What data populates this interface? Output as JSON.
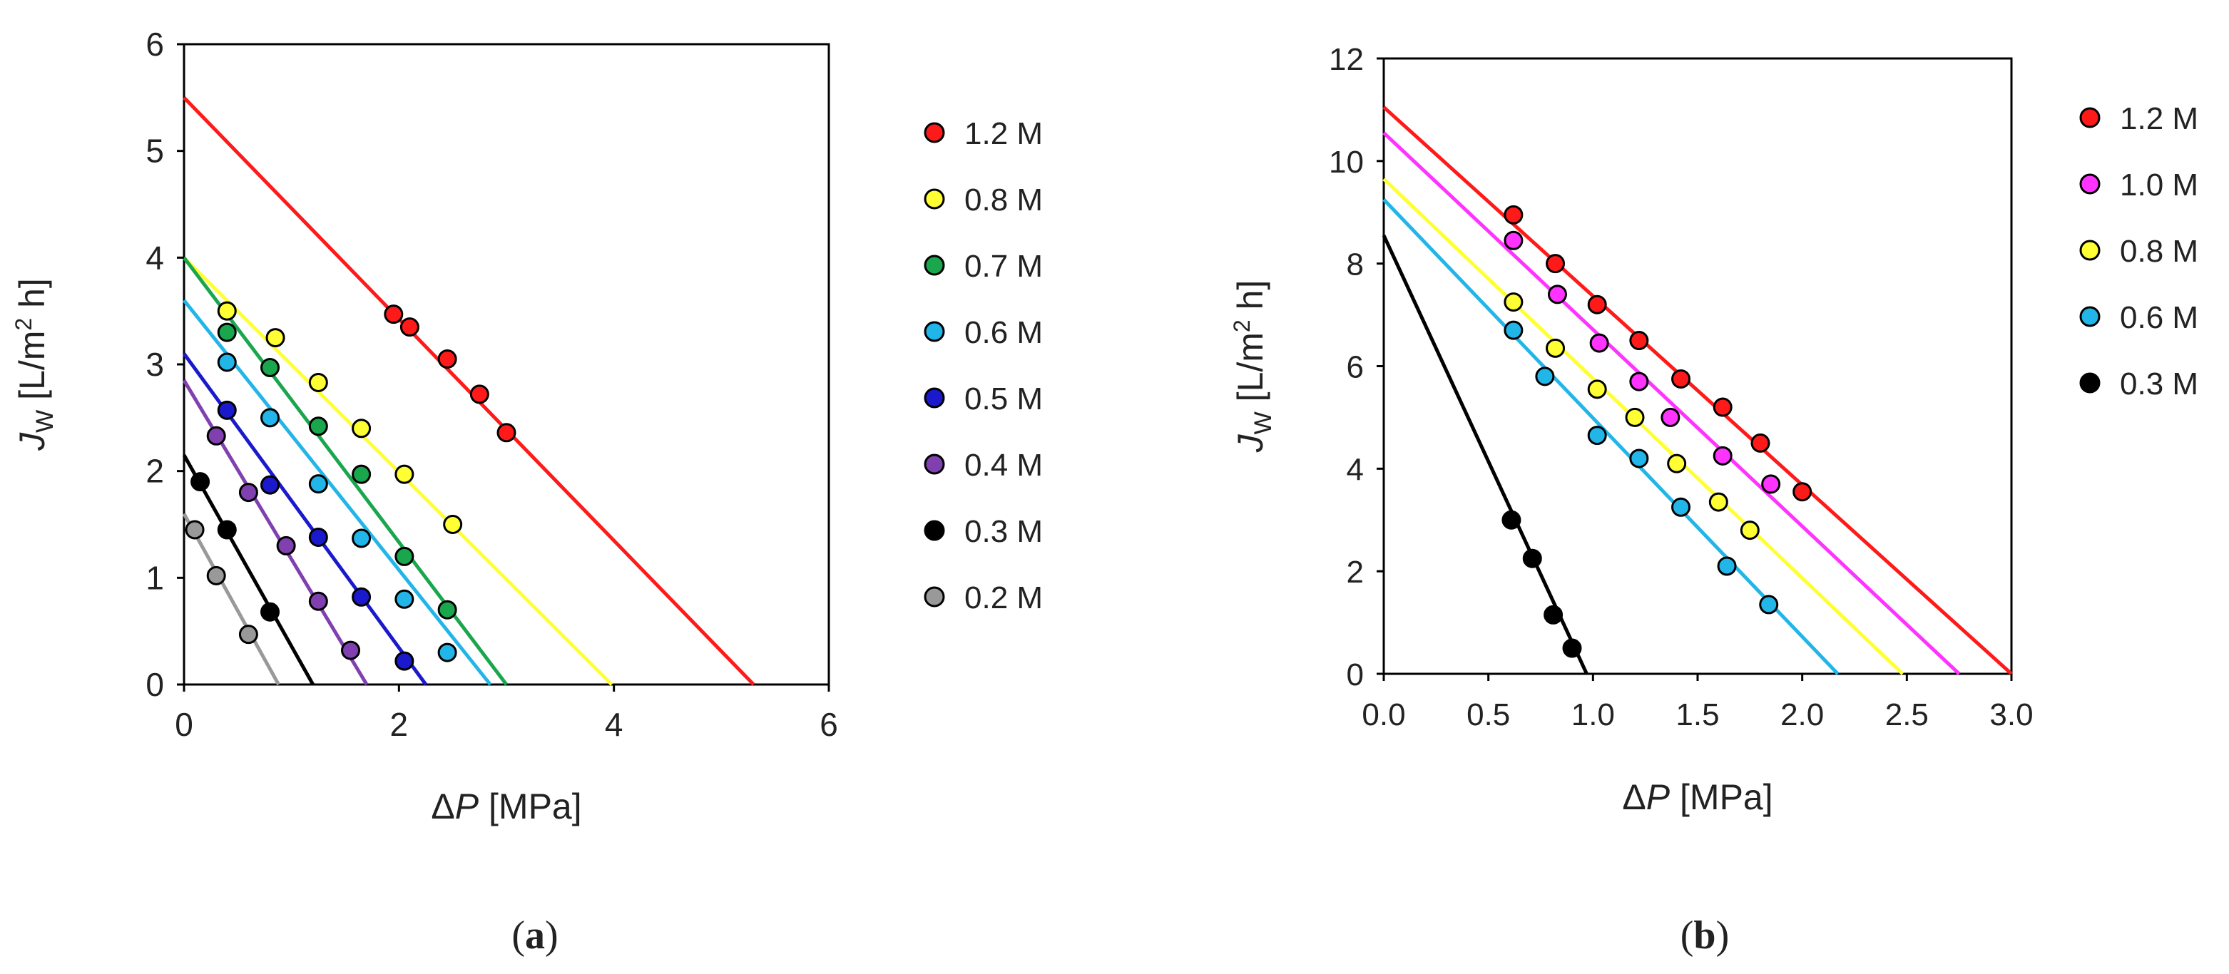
{
  "figure": {
    "panel_a_label": "a",
    "panel_b_label": "b"
  },
  "chart_data": [
    {
      "type": "scatter",
      "panel": "a",
      "title": "",
      "xlabel_prefix": "Δ",
      "xlabel_var": "P",
      "xlabel_unit": "[MPa]",
      "ylabel_var": "J",
      "ylabel_sub": "W",
      "ylabel_unit_pre": "[L/m",
      "ylabel_unit_sup": "2",
      "ylabel_unit_post": " h]",
      "xlim": [
        0,
        6
      ],
      "ylim": [
        0,
        6
      ],
      "xticks": [
        0,
        2,
        4,
        6
      ],
      "xtick_labels": [
        "0",
        "2",
        "4",
        "6"
      ],
      "yticks": [
        0,
        1,
        2,
        3,
        4,
        5,
        6
      ],
      "ytick_labels": [
        "0",
        "1",
        "2",
        "3",
        "4",
        "5",
        "6"
      ],
      "grid": false,
      "legend_position": "right",
      "series": [
        {
          "name": "1.2 M",
          "color": "#ff1a1a",
          "line": {
            "x": [
              0,
              5.3
            ],
            "y": [
              5.5,
              0
            ]
          },
          "points": {
            "x": [
              1.95,
              2.1,
              2.45,
              2.75,
              3.0
            ],
            "y": [
              3.47,
              3.35,
              3.05,
              2.72,
              2.36
            ]
          }
        },
        {
          "name": "0.8 M",
          "color": "#ffff33",
          "line": {
            "x": [
              0,
              3.98
            ],
            "y": [
              4.0,
              0
            ]
          },
          "points": {
            "x": [
              0.4,
              0.85,
              1.25,
              1.65,
              2.05,
              2.5
            ],
            "y": [
              3.5,
              3.25,
              2.83,
              2.4,
              1.97,
              1.5
            ]
          }
        },
        {
          "name": "0.7 M",
          "color": "#1aa64d",
          "line": {
            "x": [
              0,
              3.0
            ],
            "y": [
              4.0,
              0
            ]
          },
          "points": {
            "x": [
              0.4,
              0.8,
              1.25,
              1.65,
              2.05,
              2.45
            ],
            "y": [
              3.3,
              2.97,
              2.42,
              1.97,
              1.2,
              0.7
            ]
          }
        },
        {
          "name": "0.6 M",
          "color": "#22b5e8",
          "line": {
            "x": [
              0,
              2.85
            ],
            "y": [
              3.6,
              0
            ]
          },
          "points": {
            "x": [
              0.4,
              0.8,
              1.25,
              1.65,
              2.05,
              2.45
            ],
            "y": [
              3.02,
              2.5,
              1.88,
              1.37,
              0.8,
              0.3
            ]
          }
        },
        {
          "name": "0.5 M",
          "color": "#1a1acc",
          "line": {
            "x": [
              0,
              2.25
            ],
            "y": [
              3.1,
              0
            ]
          },
          "points": {
            "x": [
              0.4,
              0.8,
              1.25,
              1.65,
              2.05
            ],
            "y": [
              2.57,
              1.87,
              1.38,
              0.82,
              0.22
            ]
          }
        },
        {
          "name": "0.4 M",
          "color": "#8040b0",
          "line": {
            "x": [
              0,
              1.7
            ],
            "y": [
              2.85,
              0
            ]
          },
          "points": {
            "x": [
              0.3,
              0.6,
              0.95,
              1.25,
              1.55
            ],
            "y": [
              2.33,
              1.8,
              1.3,
              0.78,
              0.32
            ]
          }
        },
        {
          "name": "0.3 M",
          "color": "#000000",
          "line": {
            "x": [
              0,
              1.2
            ],
            "y": [
              2.15,
              0
            ]
          },
          "points": {
            "x": [
              0.15,
              0.4,
              0.8
            ],
            "y": [
              1.9,
              1.45,
              0.68
            ]
          }
        },
        {
          "name": "0.2 M",
          "color": "#999999",
          "line": {
            "x": [
              0,
              0.88
            ],
            "y": [
              1.6,
              0
            ]
          },
          "points": {
            "x": [
              0.1,
              0.3,
              0.6
            ],
            "y": [
              1.45,
              1.02,
              0.47
            ]
          }
        }
      ]
    },
    {
      "type": "scatter",
      "panel": "b",
      "title": "",
      "xlabel_prefix": "Δ",
      "xlabel_var": "P",
      "xlabel_unit": "[MPa]",
      "ylabel_var": "J",
      "ylabel_sub": "W",
      "ylabel_unit_pre": "[L/m",
      "ylabel_unit_sup": "2",
      "ylabel_unit_post": " h]",
      "xlim": [
        0,
        3
      ],
      "ylim": [
        0,
        12
      ],
      "xticks": [
        0,
        0.5,
        1.0,
        1.5,
        2.0,
        2.5,
        3.0
      ],
      "xtick_labels": [
        "0.0",
        "0.5",
        "1.0",
        "1.5",
        "2.0",
        "2.5",
        "3.0"
      ],
      "yticks": [
        0,
        2,
        4,
        6,
        8,
        10,
        12
      ],
      "ytick_labels": [
        "0",
        "2",
        "4",
        "6",
        "8",
        "10",
        "12"
      ],
      "grid": false,
      "legend_position": "right",
      "series": [
        {
          "name": "1.2 M",
          "color": "#ff1a1a",
          "line": {
            "x": [
              0,
              3.0
            ],
            "y": [
              11.05,
              0
            ]
          },
          "points": {
            "x": [
              0.62,
              0.82,
              1.02,
              1.22,
              1.42,
              1.62,
              1.8,
              2.0
            ],
            "y": [
              8.95,
              8.0,
              7.2,
              6.5,
              5.75,
              5.2,
              4.5,
              3.55
            ]
          }
        },
        {
          "name": "1.0 M",
          "color": "#ff33ff",
          "line": {
            "x": [
              0,
              2.75
            ],
            "y": [
              10.55,
              0
            ]
          },
          "points": {
            "x": [
              0.62,
              0.83,
              1.03,
              1.22,
              1.37,
              1.62,
              1.85
            ],
            "y": [
              8.45,
              7.4,
              6.45,
              5.7,
              5.0,
              4.25,
              3.7
            ]
          }
        },
        {
          "name": "0.8 M",
          "color": "#ffff33",
          "line": {
            "x": [
              0,
              2.48
            ],
            "y": [
              9.65,
              0
            ]
          },
          "points": {
            "x": [
              0.62,
              0.82,
              1.02,
              1.2,
              1.4,
              1.6,
              1.75
            ],
            "y": [
              7.25,
              6.35,
              5.55,
              5.0,
              4.1,
              3.35,
              2.8
            ]
          }
        },
        {
          "name": "0.6 M",
          "color": "#22b5e8",
          "line": {
            "x": [
              0,
              2.17
            ],
            "y": [
              9.25,
              0
            ]
          },
          "points": {
            "x": [
              0.62,
              0.77,
              1.02,
              1.22,
              1.42,
              1.64,
              1.84
            ],
            "y": [
              6.7,
              5.8,
              4.65,
              4.2,
              3.25,
              2.1,
              1.35
            ]
          }
        },
        {
          "name": "0.3 M",
          "color": "#000000",
          "line": {
            "x": [
              0,
              0.97
            ],
            "y": [
              8.55,
              0
            ]
          },
          "points": {
            "x": [
              0.61,
              0.71,
              0.81,
              0.9
            ],
            "y": [
              3.0,
              2.25,
              1.15,
              0.5
            ]
          }
        }
      ]
    }
  ]
}
